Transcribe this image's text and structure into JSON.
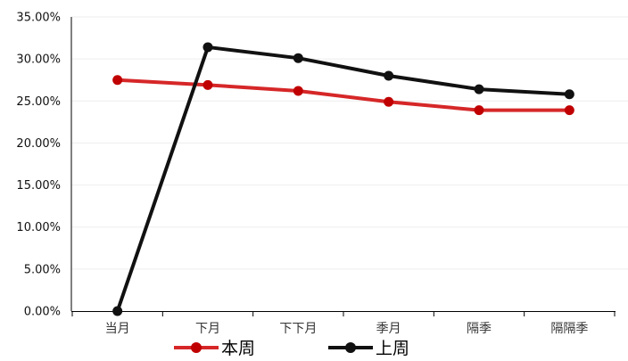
{
  "chart_data": {
    "type": "line",
    "categories": [
      "当月",
      "下月",
      "下下月",
      "季月",
      "隔季",
      "隔隔季"
    ],
    "series": [
      {
        "name": "本周",
        "values": [
          27.5,
          26.9,
          26.2,
          24.9,
          23.9,
          23.9
        ],
        "color": "#D62728",
        "marker_color": "#C00000"
      },
      {
        "name": "上周",
        "values": [
          0.0,
          31.4,
          30.1,
          28.0,
          26.4,
          25.8
        ],
        "color": "#111111",
        "marker_color": "#111111"
      }
    ],
    "ylim": [
      0,
      35
    ],
    "y_ticks": [
      "0.00%",
      "5.00%",
      "10.00%",
      "15.00%",
      "20.00%",
      "25.00%",
      "30.00%",
      "35.00%"
    ],
    "y_tick_values": [
      0,
      5,
      10,
      15,
      20,
      25,
      30,
      35
    ],
    "grid": true,
    "legend_position": "bottom",
    "title": "",
    "xlabel": "",
    "ylabel": ""
  }
}
